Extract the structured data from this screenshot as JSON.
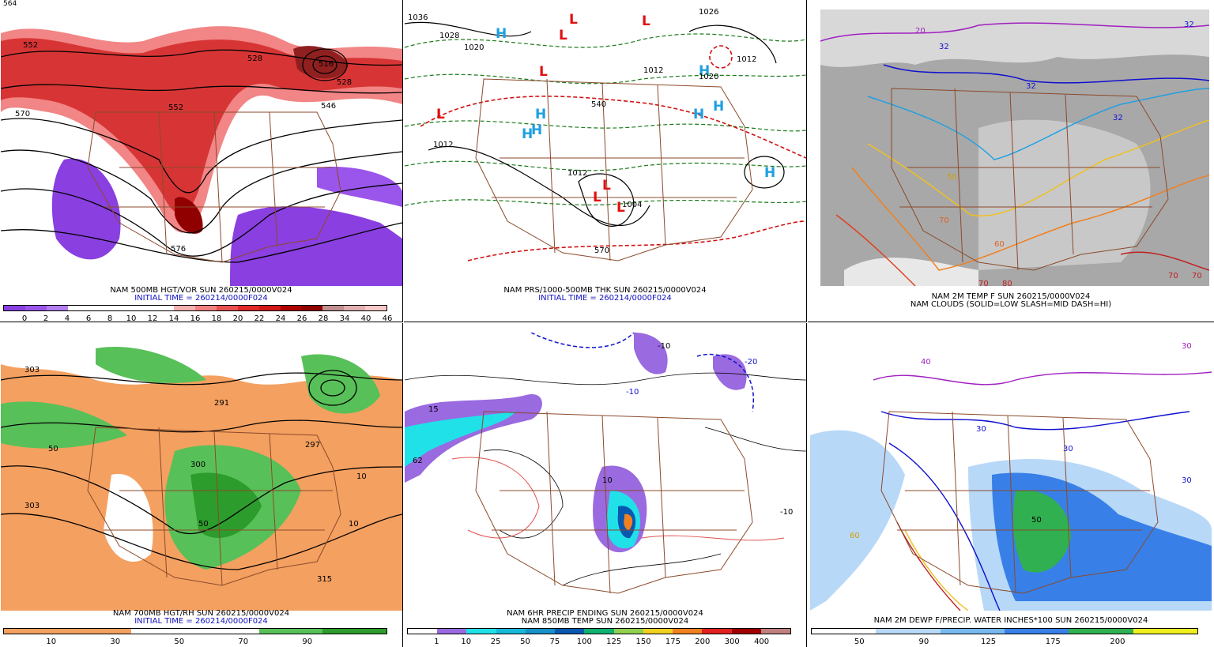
{
  "panels": [
    {
      "caption1": "NAM 500MB HGT/VOR SUN 260215/0000V024",
      "caption2": "INITIAL TIME = 260214/0000F024",
      "colorbar": [
        "0",
        "2",
        "4",
        "6",
        "8",
        "10",
        "12",
        "14",
        "16",
        "18",
        "20",
        "22",
        "24",
        "26",
        "28",
        "34",
        "40",
        "46"
      ],
      "colors": [
        "#8a3fe0",
        "#9a55ea",
        "#b27ef0",
        "#ffffff",
        "#ffffff",
        "#ffffff",
        "#ffffff",
        "#ffffff",
        "#f5b0b0",
        "#f08080",
        "#e85050",
        "#e02828",
        "#d01818",
        "#b00000",
        "#900000",
        "#c09090",
        "#e0b0b0",
        "#f8c8c8"
      ],
      "labels": [
        "552",
        "570",
        "528",
        "552",
        "516",
        "528",
        "546",
        "576",
        "564"
      ]
    },
    {
      "caption1": "NAM PRS/1000-500MB THK SUN 260215/0000V024",
      "caption2": "INITIAL TIME = 260214/0000F024",
      "labels": [
        "1036",
        "1028",
        "1020",
        "1012",
        "1012",
        "1020",
        "1012",
        "1004",
        "1012",
        "540",
        "570",
        "1026"
      ]
    },
    {
      "caption1": "NAM 2M TEMP F SUN 260215/0000V024",
      "caption2": "NAM CLOUDS (SOLID=LOW SLASH=MID DASH=HI)",
      "labels": [
        "32",
        "20",
        "32",
        "32",
        "50",
        "70",
        "70",
        "60",
        "70",
        "70",
        "80",
        "32"
      ]
    },
    {
      "caption1": "NAM 700MB HGT/RH SUN 260215/0000V024",
      "caption2": "INITIAL TIME = 260214/0000F024",
      "colorbar": [
        "10",
        "30",
        "50",
        "70",
        "90"
      ],
      "colors": [
        "#f4a060",
        "#f4a060",
        "#f4a060",
        "#f4a060",
        "#ffffff",
        "#ffffff",
        "#ffffff",
        "#ffffff",
        "#58c058",
        "#58c058",
        "#2c9c2c",
        "#2c9c2c"
      ],
      "labels": [
        "303",
        "303",
        "291",
        "297",
        "300",
        "50",
        "50",
        "10",
        "315",
        "10"
      ]
    },
    {
      "caption1": "NAM 6HR PRECIP ENDING SUN 260215/0000V024",
      "caption2": "NAM 850MB TEMP SUN 260215/0000V024",
      "colorbar": [
        "1",
        "10",
        "25",
        "50",
        "75",
        "100",
        "125",
        "150",
        "175",
        "200",
        "300",
        "400"
      ],
      "colors": [
        "#ffffff",
        "#9a6ae0",
        "#20e0e8",
        "#18b8d8",
        "#1890c8",
        "#0858b0",
        "#10b070",
        "#90d050",
        "#f0d020",
        "#f08020",
        "#e02020",
        "#a00000",
        "#c08080"
      ],
      "labels": [
        "-10",
        "-10",
        "-20",
        "10",
        "62",
        "15",
        "-10"
      ]
    },
    {
      "caption1": "NAM 2M DEWP F/PRECIP. WATER INCHES*100 SUN 260215/0000V024",
      "caption2": "",
      "colorbar": [
        "50",
        "90",
        "125",
        "175",
        "200"
      ],
      "colors": [
        "#ffffff",
        "#ffffff",
        "#b8d8f8",
        "#b8d8f8",
        "#78b8f0",
        "#78b8f0",
        "#3880e8",
        "#3880e8",
        "#30b050",
        "#30b050",
        "#f0f020",
        "#f0f020"
      ],
      "labels": [
        "30",
        "40",
        "30",
        "30",
        "60",
        "30",
        "50"
      ]
    }
  ],
  "topLabel": "564"
}
